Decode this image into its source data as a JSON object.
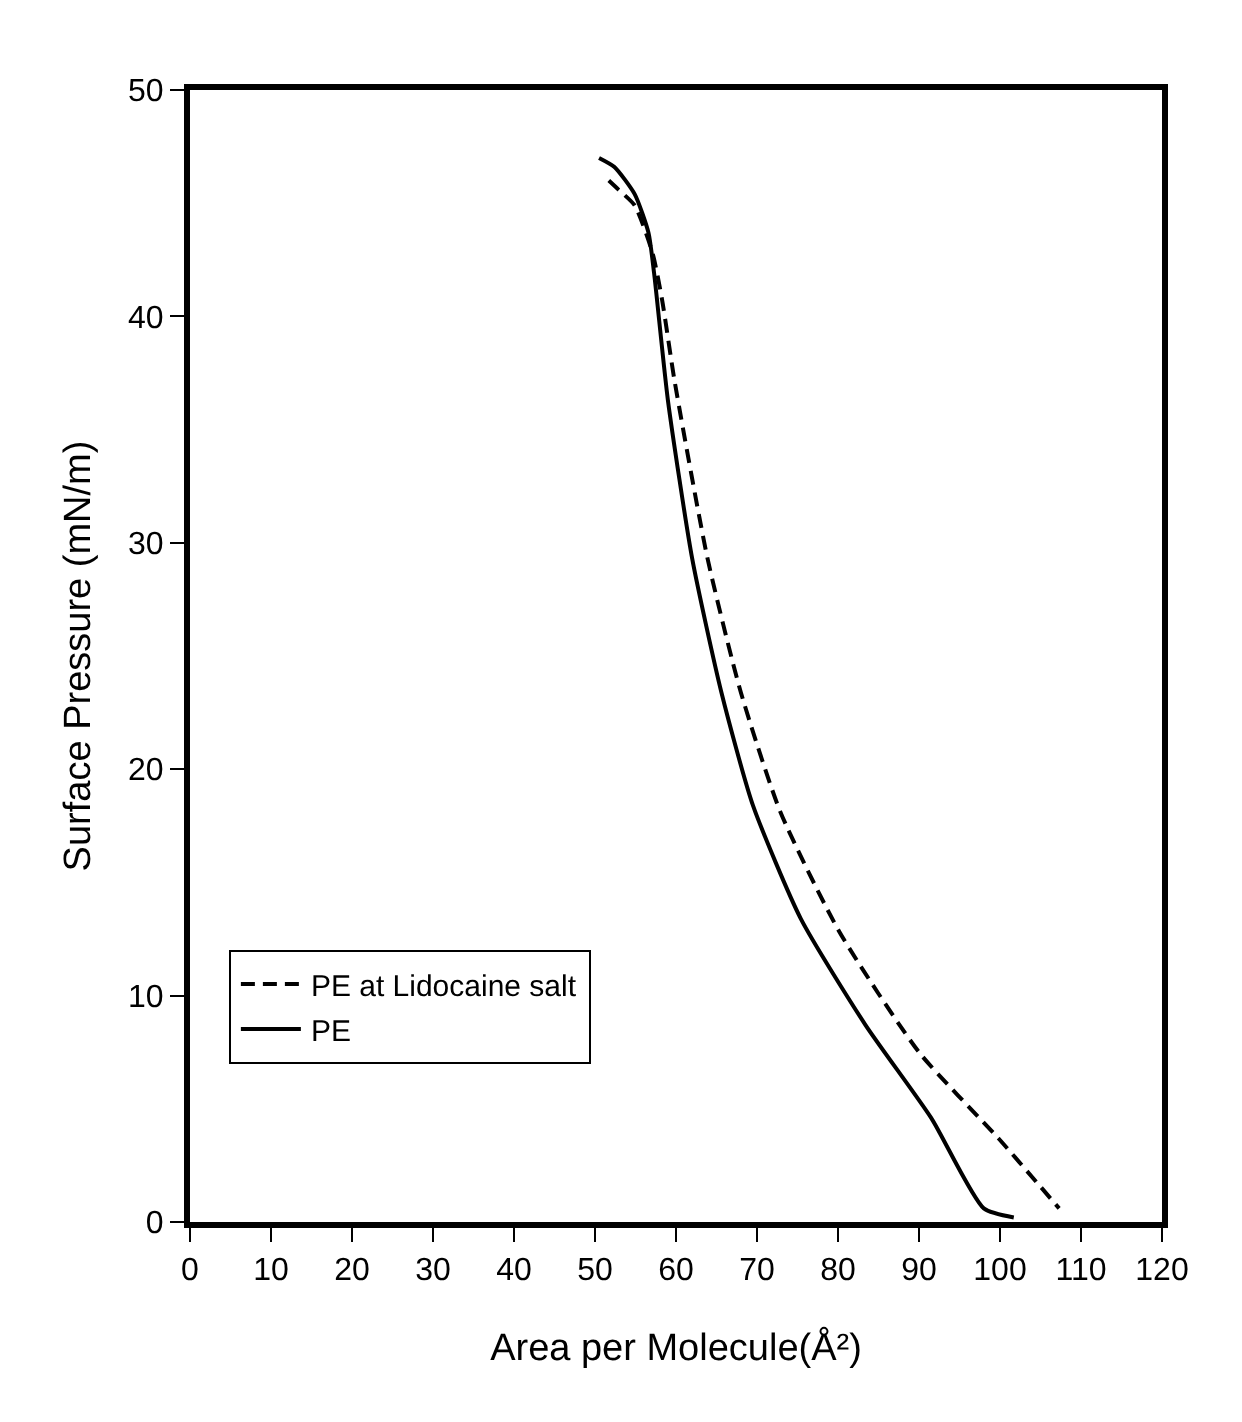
{
  "chart_data": {
    "type": "line",
    "xlabel": "Area per Molecule(Å²)",
    "ylabel": "Surface Pressure (mN/m)",
    "xlim": [
      0,
      120
    ],
    "xticks": [
      0,
      10,
      20,
      30,
      40,
      50,
      60,
      70,
      80,
      90,
      100,
      110,
      120
    ],
    "ylim": [
      0,
      50
    ],
    "yticks": [
      0,
      10,
      20,
      30,
      40,
      50
    ],
    "grid": false,
    "legend": "bottom left",
    "marker": "none",
    "series": [
      {
        "name": "PE at Lidocaine salt",
        "color": "#000000",
        "line_style": "dashed",
        "x": [
          51.7,
          52.9,
          54.9,
          57.1,
          58.3,
          59.8,
          63.9,
          68.0,
          72.9,
          80.2,
          90.0,
          99.8,
          107.3
        ],
        "values": [
          46.0,
          45.6,
          44.9,
          42.8,
          40.7,
          37.2,
          29.3,
          23.4,
          18.1,
          12.8,
          7.5,
          3.7,
          0.6
        ]
      },
      {
        "name": "PE",
        "color": "#000000",
        "line_style": "solid",
        "x": [
          50.5,
          52.4,
          54.9,
          56.6,
          57.3,
          59.0,
          62.0,
          65.6,
          69.5,
          75.4,
          83.4,
          91.5,
          98.0,
          101.7
        ],
        "values": [
          47.0,
          46.6,
          45.4,
          43.7,
          41.9,
          36.3,
          29.3,
          23.4,
          18.4,
          13.4,
          8.7,
          4.6,
          0.6,
          0.2
        ]
      }
    ]
  }
}
